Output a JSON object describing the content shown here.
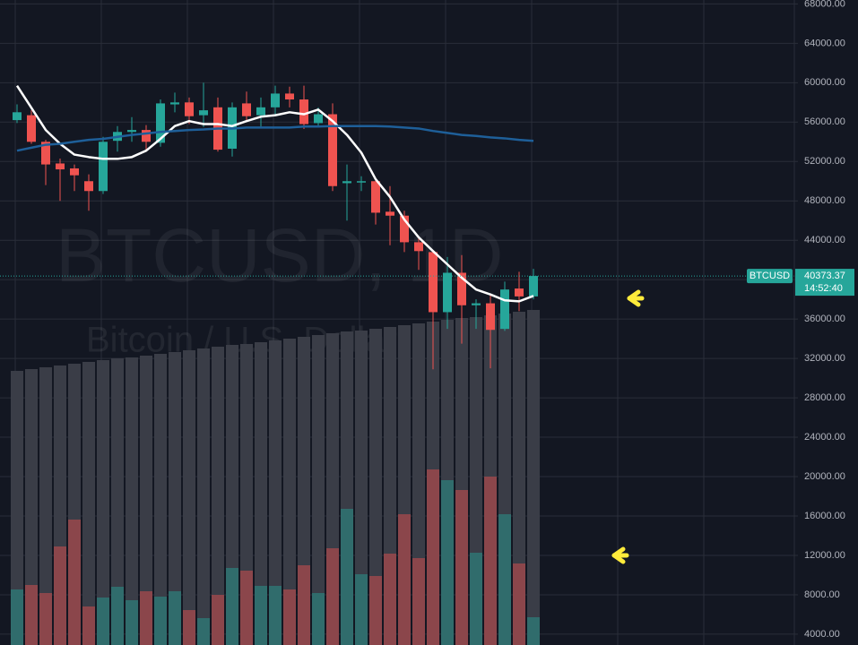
{
  "chart_data": {
    "type": "candlestick",
    "watermark": "BTCUSD, 1D",
    "watermark_subtitle": "Bitcoin / U.S. Dollar",
    "symbol_label": "BTCUSD",
    "last_price": 40373.37,
    "countdown": "14:52:40",
    "ylim": [
      2900,
      68400
    ],
    "yticks": [
      {
        "value": 68000,
        "label": "68000.00"
      },
      {
        "value": 64000,
        "label": "64000.00"
      },
      {
        "value": 60000,
        "label": "60000.00"
      },
      {
        "value": 56000,
        "label": "56000.00"
      },
      {
        "value": 52000,
        "label": "52000.00"
      },
      {
        "value": 48000,
        "label": "48000.00"
      },
      {
        "value": 44000,
        "label": "44000.00"
      },
      {
        "value": 40000,
        "label": "40000.00"
      },
      {
        "value": 36000,
        "label": "36000.00"
      },
      {
        "value": 32000,
        "label": "32000.00"
      },
      {
        "value": 28000,
        "label": "28000.00"
      },
      {
        "value": 24000,
        "label": "24000.00"
      },
      {
        "value": 20000,
        "label": "20000.00"
      },
      {
        "value": 16000,
        "label": "16000.00"
      },
      {
        "value": 12000,
        "label": "12000.00"
      },
      {
        "value": 8000,
        "label": "8000.00"
      },
      {
        "value": 4000,
        "label": "4000.00"
      }
    ],
    "grid": true,
    "up_color": "#26a69a",
    "down_color": "#ef5350",
    "open": [
      56200,
      56700,
      54000,
      51800,
      51300,
      50000,
      49000,
      54100,
      55000,
      55200,
      53900,
      57800,
      58000,
      56700,
      57500,
      53300,
      57900,
      56700,
      57500,
      58900,
      58300,
      55900,
      56800,
      49800,
      49900,
      50000,
      46900,
      46500,
      43800,
      42800,
      36700,
      40700,
      37400,
      37600,
      35000,
      39100,
      38300
    ],
    "high": [
      57800,
      57200,
      54200,
      52300,
      51700,
      50700,
      54500,
      55600,
      56500,
      55700,
      58300,
      59000,
      58500,
      60000,
      58500,
      58000,
      59100,
      58500,
      59700,
      59600,
      59700,
      57500,
      57900,
      51700,
      50500,
      50200,
      49500,
      47000,
      44300,
      43000,
      42300,
      42500,
      38000,
      38500,
      39800,
      40800,
      41100
    ],
    "low": [
      55900,
      53800,
      49600,
      48000,
      49000,
      47000,
      48700,
      53000,
      54000,
      53000,
      53500,
      57000,
      55800,
      55500,
      53000,
      52500,
      56000,
      55500,
      56800,
      57500,
      55300,
      55600,
      49000,
      46000,
      49000,
      45600,
      43500,
      42800,
      41000,
      30900,
      35000,
      33500,
      35000,
      31000,
      34800,
      36800,
      38000
    ],
    "close": [
      57000,
      54000,
      51700,
      51200,
      50600,
      49000,
      54000,
      55000,
      55200,
      54000,
      57900,
      58000,
      56600,
      57200,
      53200,
      57500,
      56600,
      57500,
      58900,
      58300,
      55800,
      56800,
      49500,
      50000,
      50000,
      46800,
      46500,
      43800,
      42900,
      36700,
      40700,
      37400,
      37600,
      34900,
      39000,
      38300,
      40373.37
    ],
    "moving_averages": [
      {
        "color": "#ffffff",
        "values": [
          59700,
          57450,
          55200,
          53800,
          52700,
          52450,
          52270,
          52270,
          52450,
          53100,
          54300,
          55600,
          56100,
          55800,
          55800,
          55600,
          56100,
          56550,
          56700,
          57000,
          56800,
          57270,
          56100,
          54700,
          52900,
          50200,
          48400,
          46100,
          44300,
          42900,
          41550,
          40200,
          39000,
          38500,
          37900,
          37800,
          38350
        ]
      },
      {
        "color": "#1e5f99",
        "values": [
          53100,
          53400,
          53700,
          53800,
          54000,
          54200,
          54300,
          54500,
          54700,
          54850,
          55000,
          55100,
          55200,
          55250,
          55350,
          55350,
          55450,
          55450,
          55450,
          55450,
          55550,
          55550,
          55600,
          55600,
          55600,
          55600,
          55550,
          55450,
          55350,
          55100,
          54900,
          54700,
          54600,
          54450,
          54350,
          54200,
          54100
        ]
      }
    ],
    "vlim": [
      0,
      720
    ],
    "volume": [
      62,
      67,
      58,
      110,
      140,
      43,
      53,
      65,
      50,
      60,
      54,
      60,
      39,
      30,
      56,
      86,
      83,
      66,
      66,
      62,
      89,
      58,
      108,
      152,
      79,
      77,
      102,
      146,
      97,
      196,
      184,
      173,
      103,
      188,
      146,
      91,
      31
    ],
    "volume_background": [
      306,
      308,
      310,
      312,
      314,
      316,
      318,
      320,
      321,
      323,
      325,
      327,
      329,
      331,
      333,
      335,
      336,
      338,
      340,
      342,
      344,
      346,
      348,
      350,
      351,
      353,
      355,
      357,
      359,
      361,
      363,
      365,
      366,
      368,
      370,
      372,
      374
    ],
    "volume_background_color": "#3a3d47"
  }
}
